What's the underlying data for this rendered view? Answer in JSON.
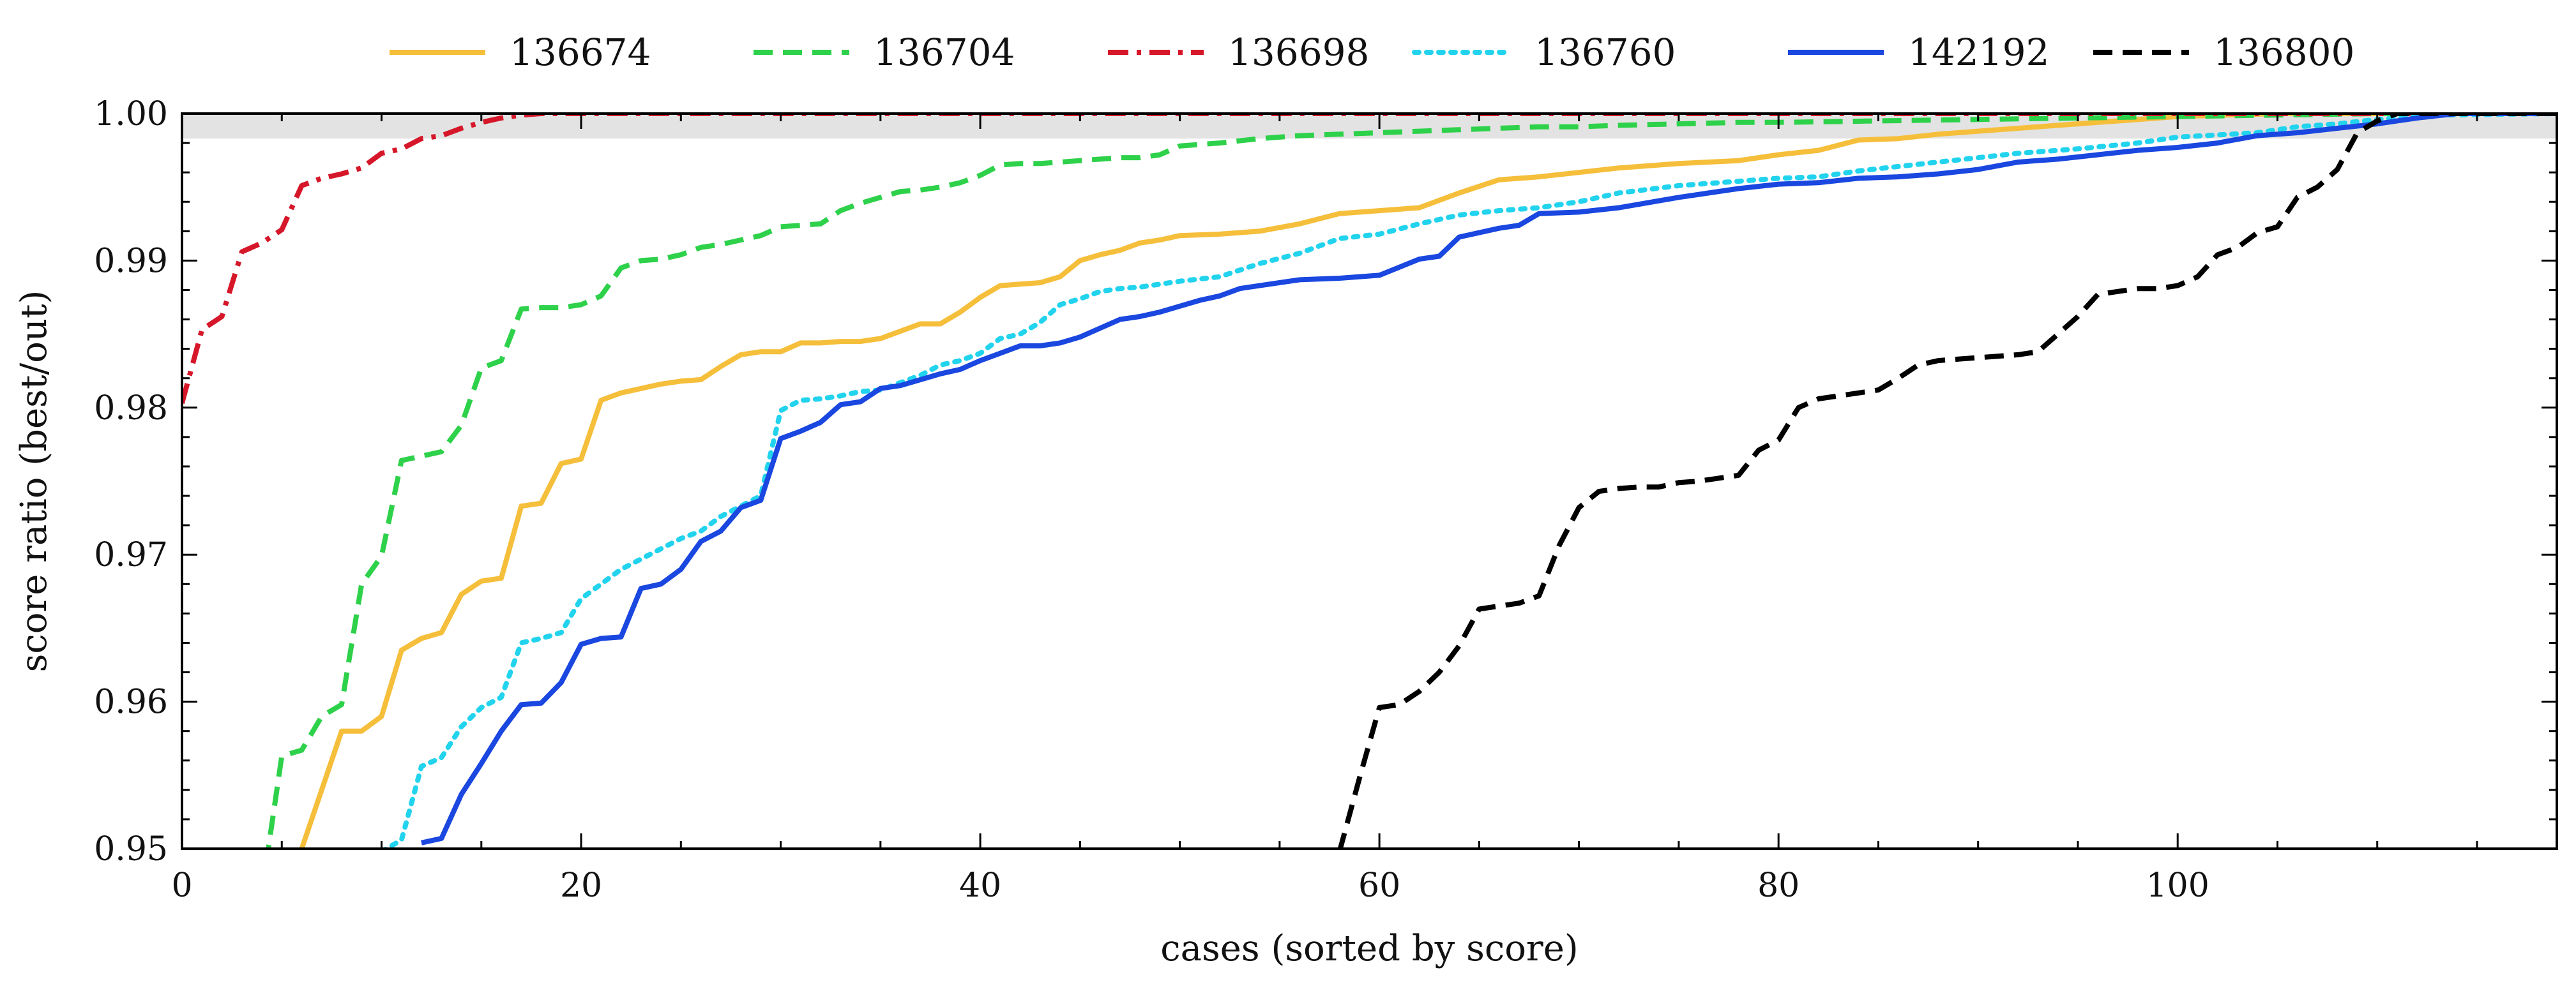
{
  "chart_data": {
    "type": "line",
    "title": "",
    "xlabel": "cases (sorted by score)",
    "ylabel": "score ratio (best/out)",
    "xlim": [
      0,
      119
    ],
    "ylim": [
      0.95,
      1.0
    ],
    "x_ticks": [
      0,
      20,
      40,
      60,
      80,
      100
    ],
    "x_tick_labels": [
      "0",
      "20",
      "40",
      "60",
      "80",
      "100"
    ],
    "y_ticks": [
      0.95,
      0.96,
      0.97,
      0.98,
      0.99,
      1.0
    ],
    "y_tick_labels": [
      "0.95",
      "0.96",
      "0.97",
      "0.98",
      "0.99",
      "1.00"
    ],
    "grid": false,
    "legend_position": "top-outside",
    "shaded_band": {
      "y_from": 0.9983,
      "y_to": 1.0,
      "color": "#e3e3e3"
    },
    "series": [
      {
        "name": "136674",
        "color": "#f5bf3b",
        "dash": "solid",
        "x": [
          5,
          6,
          7,
          8,
          9,
          10,
          11,
          12,
          13,
          14,
          15,
          16,
          17,
          18,
          19,
          20,
          21,
          22,
          23,
          24,
          25,
          26,
          27,
          28,
          29,
          30,
          31,
          32,
          33,
          34,
          35,
          36,
          37,
          38,
          39,
          40,
          41,
          42,
          43,
          44,
          45,
          46,
          47,
          48,
          49,
          50,
          52,
          54,
          56,
          58,
          60,
          62,
          64,
          66,
          68,
          70,
          72,
          75,
          78,
          80,
          82,
          84,
          86,
          88,
          90,
          92,
          95,
          98,
          100,
          105,
          110,
          113,
          119
        ],
        "y": [
          0.947,
          0.95,
          0.954,
          0.958,
          0.958,
          0.959,
          0.9635,
          0.9643,
          0.9647,
          0.9673,
          0.9682,
          0.9684,
          0.9733,
          0.9735,
          0.9762,
          0.9765,
          0.9805,
          0.981,
          0.9813,
          0.9816,
          0.9818,
          0.9819,
          0.9828,
          0.9836,
          0.9838,
          0.9838,
          0.9844,
          0.9844,
          0.9845,
          0.9845,
          0.9847,
          0.9852,
          0.9857,
          0.9857,
          0.9865,
          0.9875,
          0.9883,
          0.9884,
          0.9885,
          0.9889,
          0.99,
          0.9904,
          0.9907,
          0.9912,
          0.9914,
          0.9917,
          0.9918,
          0.992,
          0.9925,
          0.9932,
          0.9934,
          0.9936,
          0.9946,
          0.9955,
          0.9957,
          0.996,
          0.9963,
          0.9966,
          0.9968,
          0.9972,
          0.9975,
          0.9982,
          0.9983,
          0.9986,
          0.9988,
          0.999,
          0.9993,
          0.9996,
          0.9998,
          1.0,
          1.0,
          1.0,
          1.0
        ]
      },
      {
        "name": "136704",
        "color": "#2ed14a",
        "dash": "dashed",
        "x": [
          4,
          5,
          6,
          7,
          8,
          9,
          10,
          11,
          12,
          13,
          14,
          15,
          16,
          17,
          18,
          19,
          20,
          21,
          22,
          23,
          24,
          25,
          26,
          27,
          28,
          29,
          30,
          31,
          32,
          33,
          34,
          35,
          36,
          37,
          38,
          39,
          40,
          41,
          42,
          43,
          44,
          45,
          46,
          47,
          48,
          49,
          50,
          52,
          54,
          56,
          58,
          60,
          62,
          64,
          66,
          68,
          70,
          72,
          75,
          78,
          80,
          85,
          90,
          95,
          100,
          105,
          110,
          119
        ],
        "y": [
          0.947,
          0.9563,
          0.9567,
          0.959,
          0.9598,
          0.968,
          0.9699,
          0.9764,
          0.9767,
          0.977,
          0.9788,
          0.9827,
          0.9832,
          0.9867,
          0.9868,
          0.9868,
          0.987,
          0.9876,
          0.9895,
          0.99,
          0.9901,
          0.9904,
          0.9909,
          0.9911,
          0.9914,
          0.9917,
          0.9923,
          0.9924,
          0.9925,
          0.9934,
          0.9939,
          0.9943,
          0.9947,
          0.9948,
          0.995,
          0.9953,
          0.9958,
          0.9965,
          0.9966,
          0.9966,
          0.9967,
          0.9968,
          0.9969,
          0.997,
          0.997,
          0.9972,
          0.9978,
          0.998,
          0.9983,
          0.9985,
          0.9986,
          0.9987,
          0.9988,
          0.9989,
          0.999,
          0.9991,
          0.9991,
          0.9992,
          0.9993,
          0.9994,
          0.9994,
          0.9995,
          0.9996,
          0.9997,
          0.9998,
          0.9999,
          1.0,
          1.0
        ]
      },
      {
        "name": "136698",
        "color": "#d6172a",
        "dash": "dashdot",
        "x": [
          0,
          1,
          2,
          3,
          4,
          5,
          6,
          7,
          8,
          9,
          10,
          11,
          12,
          13,
          14,
          15,
          16,
          17,
          18,
          20,
          25,
          30,
          40,
          60,
          80,
          100,
          119
        ],
        "y": [
          0.9803,
          0.9853,
          0.9862,
          0.9906,
          0.9912,
          0.9921,
          0.9951,
          0.9956,
          0.9959,
          0.9963,
          0.9973,
          0.9976,
          0.9983,
          0.9985,
          0.999,
          0.9994,
          0.9997,
          0.9999,
          1.0,
          1.0,
          1.0,
          1.0,
          1.0,
          1.0,
          1.0,
          1.0,
          1.0
        ]
      },
      {
        "name": "136760",
        "color": "#22d3ee",
        "dash": "dotted",
        "x": [
          10,
          11,
          12,
          13,
          14,
          15,
          16,
          17,
          18,
          19,
          20,
          21,
          22,
          23,
          24,
          25,
          26,
          27,
          28,
          29,
          30,
          31,
          32,
          33,
          34,
          35,
          36,
          37,
          38,
          39,
          40,
          41,
          42,
          43,
          44,
          45,
          46,
          47,
          48,
          49,
          50,
          52,
          54,
          56,
          58,
          60,
          62,
          64,
          66,
          68,
          70,
          72,
          75,
          78,
          80,
          82,
          84,
          86,
          88,
          90,
          92,
          95,
          98,
          100,
          104,
          106,
          108,
          110,
          113,
          119
        ],
        "y": [
          0.9498,
          0.9506,
          0.9556,
          0.9562,
          0.9583,
          0.9596,
          0.9603,
          0.964,
          0.9643,
          0.9647,
          0.967,
          0.968,
          0.969,
          0.9697,
          0.9704,
          0.9711,
          0.9716,
          0.9726,
          0.9733,
          0.974,
          0.9798,
          0.9805,
          0.9806,
          0.9808,
          0.9811,
          0.9812,
          0.9817,
          0.9822,
          0.9829,
          0.9832,
          0.9837,
          0.9847,
          0.985,
          0.9858,
          0.987,
          0.9874,
          0.9879,
          0.9881,
          0.9882,
          0.9884,
          0.9886,
          0.9889,
          0.9898,
          0.9905,
          0.9915,
          0.9918,
          0.9925,
          0.9931,
          0.9934,
          0.9936,
          0.994,
          0.9946,
          0.9951,
          0.9954,
          0.9956,
          0.9957,
          0.9961,
          0.9964,
          0.9967,
          0.997,
          0.9973,
          0.9976,
          0.998,
          0.9984,
          0.9987,
          0.9991,
          0.9993,
          0.9996,
          0.9999,
          1.0
        ]
      },
      {
        "name": "142192",
        "color": "#1a47e0",
        "dash": "solid",
        "x": [
          12,
          13,
          14,
          15,
          16,
          17,
          18,
          19,
          20,
          21,
          22,
          23,
          24,
          25,
          26,
          27,
          28,
          29,
          30,
          31,
          32,
          33,
          34,
          35,
          36,
          37,
          38,
          39,
          40,
          41,
          42,
          43,
          44,
          45,
          46,
          47,
          48,
          49,
          50,
          51,
          52,
          53,
          54,
          56,
          58,
          60,
          62,
          63,
          64,
          66,
          67,
          68,
          70,
          72,
          75,
          78,
          80,
          82,
          84,
          86,
          88,
          90,
          92,
          94,
          96,
          98,
          100,
          102,
          104,
          106,
          108,
          110,
          112,
          114,
          119
        ],
        "y": [
          0.9504,
          0.9507,
          0.9537,
          0.9558,
          0.958,
          0.9598,
          0.9599,
          0.9613,
          0.9639,
          0.9643,
          0.9644,
          0.9677,
          0.968,
          0.969,
          0.9709,
          0.9716,
          0.9732,
          0.9737,
          0.9779,
          0.9784,
          0.979,
          0.9802,
          0.9804,
          0.9813,
          0.9815,
          0.9819,
          0.9823,
          0.9826,
          0.9832,
          0.9837,
          0.9842,
          0.9842,
          0.9844,
          0.9848,
          0.9854,
          0.986,
          0.9862,
          0.9865,
          0.9869,
          0.9873,
          0.9876,
          0.9881,
          0.9883,
          0.9887,
          0.9888,
          0.989,
          0.9901,
          0.9903,
          0.9916,
          0.9922,
          0.9924,
          0.9932,
          0.9933,
          0.9936,
          0.9943,
          0.9949,
          0.9952,
          0.9953,
          0.9956,
          0.9957,
          0.9959,
          0.9962,
          0.9967,
          0.9969,
          0.9972,
          0.9975,
          0.9977,
          0.998,
          0.9985,
          0.9987,
          0.999,
          0.9993,
          0.9997,
          1.0,
          1.0
        ]
      },
      {
        "name": "136800",
        "color": "#000000",
        "dash": "dashed",
        "x": [
          58,
          59,
          60,
          61,
          62,
          63,
          64,
          65,
          66,
          67,
          68,
          69,
          70,
          71,
          72,
          73,
          74,
          75,
          76,
          77,
          78,
          79,
          80,
          81,
          82,
          83,
          84,
          85,
          86,
          87,
          88,
          89,
          90,
          91,
          92,
          93,
          94,
          95,
          96,
          97,
          98,
          99,
          100,
          101,
          102,
          103,
          104,
          105,
          106,
          107,
          108,
          109,
          110,
          111,
          112,
          113,
          114,
          119
        ],
        "y": [
          0.9498,
          0.9548,
          0.9596,
          0.9598,
          0.9607,
          0.962,
          0.9638,
          0.9663,
          0.9665,
          0.9667,
          0.9672,
          0.9706,
          0.9732,
          0.9743,
          0.9745,
          0.9746,
          0.9746,
          0.9749,
          0.975,
          0.9752,
          0.9754,
          0.9771,
          0.9778,
          0.98,
          0.9806,
          0.9808,
          0.981,
          0.9812,
          0.982,
          0.9829,
          0.9832,
          0.9833,
          0.9834,
          0.9835,
          0.9836,
          0.9838,
          0.985,
          0.9862,
          0.9877,
          0.9879,
          0.9881,
          0.9881,
          0.9883,
          0.9889,
          0.9904,
          0.9909,
          0.9919,
          0.9923,
          0.9943,
          0.995,
          0.9962,
          0.9987,
          0.9995,
          1.0,
          1.0,
          1.0,
          1.0,
          1.0
        ]
      }
    ]
  }
}
